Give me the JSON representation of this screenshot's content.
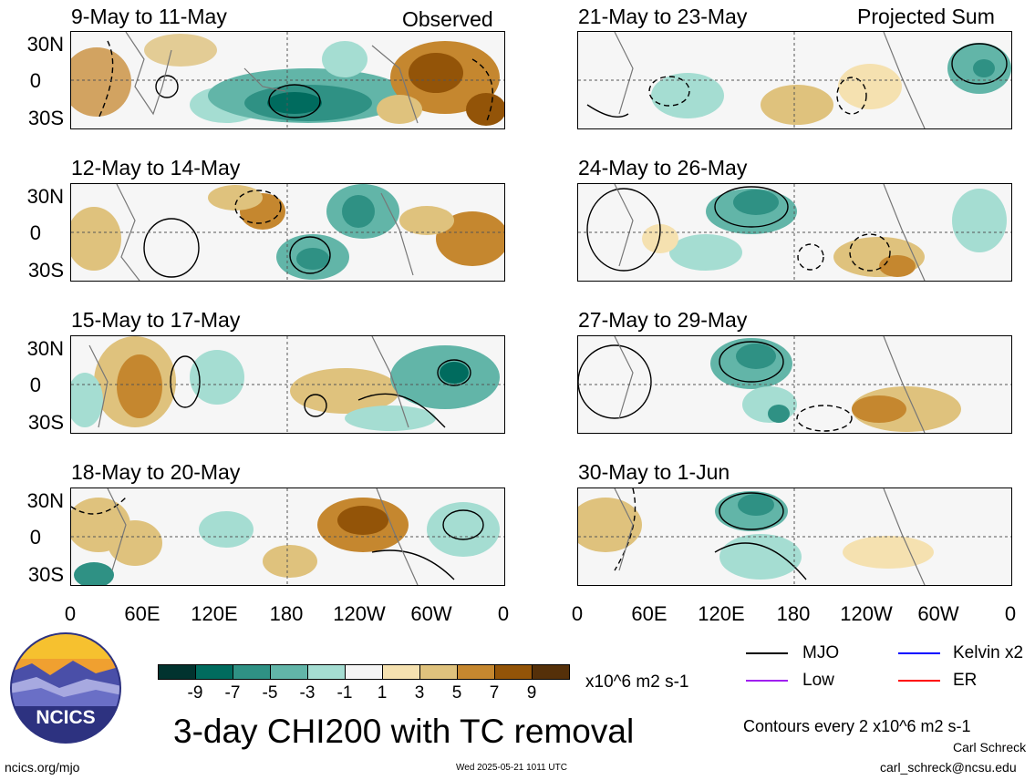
{
  "panels": [
    {
      "title": "9-May to 11-May",
      "tag": "Observed"
    },
    {
      "title": "12-May to 14-May",
      "tag": ""
    },
    {
      "title": "15-May to 17-May",
      "tag": ""
    },
    {
      "title": "18-May to 20-May",
      "tag": ""
    },
    {
      "title": "21-May to 23-May",
      "tag": "Projected Sum"
    },
    {
      "title": "24-May to 26-May",
      "tag": ""
    },
    {
      "title": "27-May to 29-May",
      "tag": ""
    },
    {
      "title": "30-May to 1-Jun",
      "tag": ""
    }
  ],
  "lat_ticks": [
    "30N",
    "0",
    "30S"
  ],
  "lon_ticks": [
    "0",
    "60E",
    "120E",
    "180",
    "120W",
    "60W",
    "0"
  ],
  "colorbar": {
    "colors": [
      "#01332f",
      "#006b5e",
      "#2f9184",
      "#62b5a8",
      "#a5ddd2",
      "#f4f4f4",
      "#f5e1b0",
      "#dfc27d",
      "#c5872f",
      "#935408",
      "#553009"
    ],
    "labels": [
      "-9",
      "-7",
      "-5",
      "-3",
      "-1",
      "1",
      "3",
      "5",
      "7",
      "9"
    ],
    "units": "x10^6 m2 s-1"
  },
  "legend": [
    {
      "label": "MJO",
      "color": "#000000"
    },
    {
      "label": "Kelvin x2",
      "color": "#0000ff"
    },
    {
      "label": "Low",
      "color": "#a020f0"
    },
    {
      "label": "ER",
      "color": "#ff0000"
    }
  ],
  "contour_note": "Contours every 2 x10^6 m2 s-1",
  "main_title": "3-day CHI200 with TC removal",
  "logo_text": "NCICS",
  "footer": {
    "site": "ncics.org/mjo",
    "timestamp": "Wed 2025-05-21 1011 UTC",
    "author": "Carl Schreck",
    "email": "carl_schreck@ncsu.edu"
  }
}
